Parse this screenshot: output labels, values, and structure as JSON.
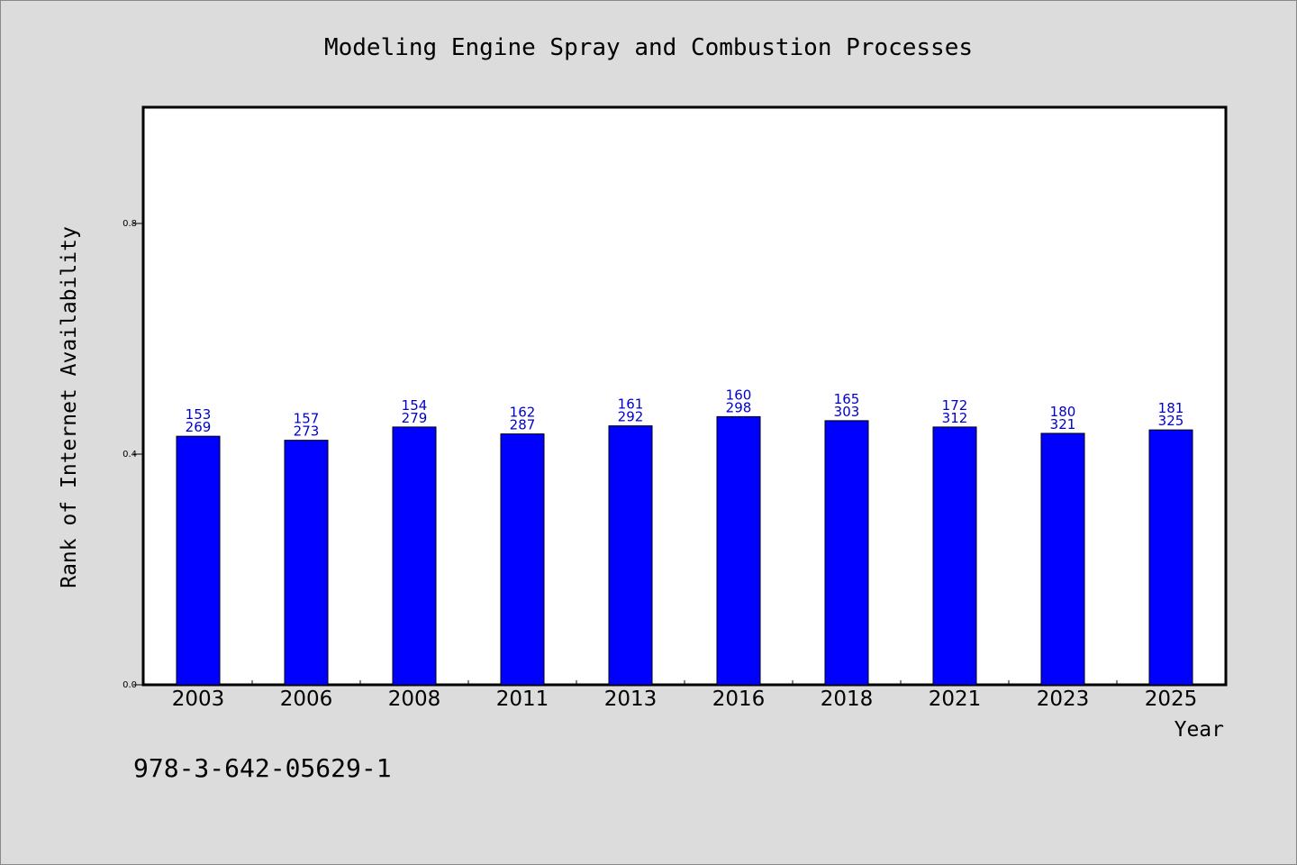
{
  "chart_data": {
    "type": "bar",
    "title": "Modeling Engine Spray and Combustion Processes",
    "xlabel": "Year",
    "ylabel": "Rank of Internet Availability",
    "categories": [
      "2003",
      "2006",
      "2008",
      "2011",
      "2013",
      "2016",
      "2018",
      "2021",
      "2023",
      "2025"
    ],
    "values": [
      0.431,
      0.424,
      0.447,
      0.435,
      0.449,
      0.465,
      0.458,
      0.447,
      0.436,
      0.442
    ],
    "bar_labels_top": [
      "153",
      "157",
      "154",
      "162",
      "161",
      "160",
      "165",
      "172",
      "180",
      "181"
    ],
    "bar_labels_bottom": [
      "269",
      "273",
      "279",
      "287",
      "292",
      "298",
      "303",
      "312",
      "321",
      "325"
    ],
    "ylim": [
      0,
      1.0
    ],
    "yticks": [
      0.0,
      0.4,
      0.8
    ],
    "ytick_labels": [
      "0.0",
      "0.4",
      "0.8"
    ],
    "grid": false,
    "bar_color": "#0000ff",
    "label_color": "#0000cc"
  },
  "footer": {
    "isbn": "978-3-642-05629-1"
  }
}
